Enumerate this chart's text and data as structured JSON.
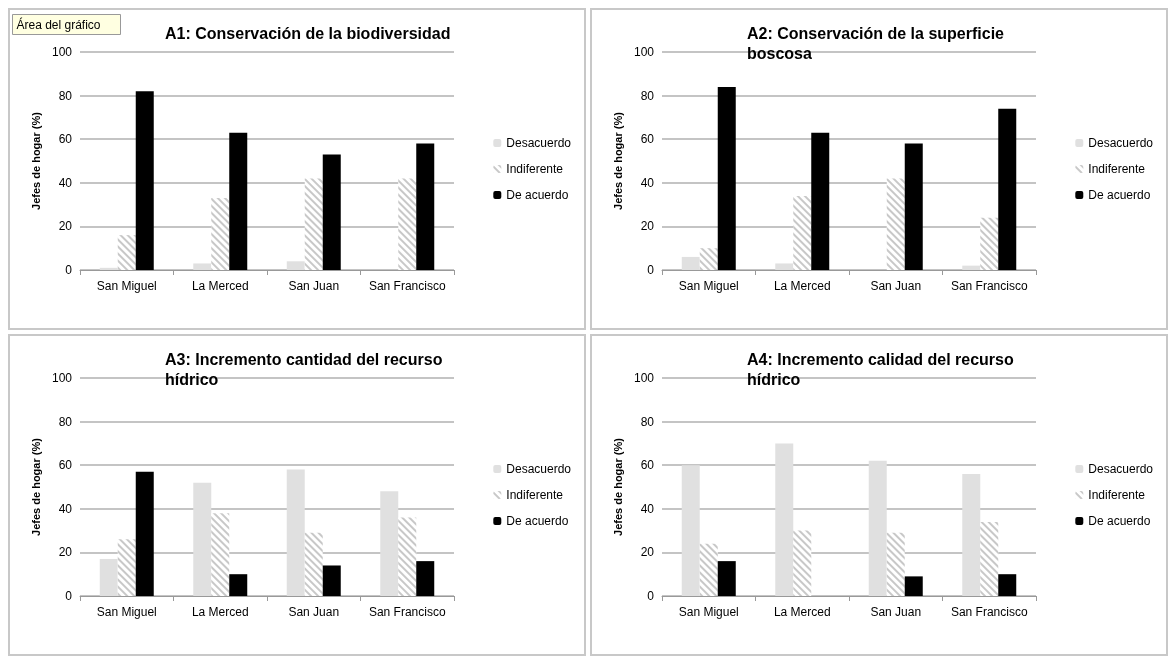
{
  "chart_data": [
    {
      "type": "bar",
      "title": "A1: Conservación de la biodiversidad",
      "ylabel": "Jefes de hogar (%)",
      "categories": [
        "San Miguel",
        "La Merced",
        "San Juan",
        "San Francisco"
      ],
      "ylim": [
        0,
        100
      ],
      "yticks": [
        0,
        20,
        40,
        60,
        80,
        100
      ],
      "grid": "y",
      "legend": "right",
      "annotations": [
        "Área del gráfico"
      ],
      "series": [
        {
          "name": "Desacuerdo",
          "color": "#e0e0e0",
          "values": [
            1,
            3,
            4,
            0
          ]
        },
        {
          "name": "Indiferente",
          "color": "#c8c8c8",
          "values": [
            16,
            33,
            42,
            42
          ]
        },
        {
          "name": "De acuerdo",
          "color": "#000000",
          "values": [
            82,
            63,
            53,
            58
          ]
        }
      ]
    },
    {
      "type": "bar",
      "title": "A2: Conservación de la superficie boscosa",
      "ylabel": "Jefes de hogar (%)",
      "categories": [
        "San Miguel",
        "La Merced",
        "San Juan",
        "San Francisco"
      ],
      "ylim": [
        0,
        100
      ],
      "yticks": [
        0,
        20,
        40,
        60,
        80,
        100
      ],
      "grid": "y",
      "legend": "right",
      "series": [
        {
          "name": "Desacuerdo",
          "color": "#e0e0e0",
          "values": [
            6,
            3,
            0,
            2
          ]
        },
        {
          "name": "Indiferente",
          "color": "#c8c8c8",
          "values": [
            10,
            34,
            42,
            24
          ]
        },
        {
          "name": "De acuerdo",
          "color": "#000000",
          "values": [
            84,
            63,
            58,
            74
          ]
        }
      ]
    },
    {
      "type": "bar",
      "title": "A3: Incremento cantidad del recurso hídrico",
      "ylabel": "Jefes de hogar (%)",
      "categories": [
        "San Miguel",
        "La Merced",
        "San Juan",
        "San Francisco"
      ],
      "ylim": [
        0,
        100
      ],
      "yticks": [
        0,
        20,
        40,
        60,
        80,
        100
      ],
      "grid": "y",
      "legend": "right",
      "series": [
        {
          "name": "Desacuerdo",
          "color": "#e0e0e0",
          "values": [
            17,
            52,
            58,
            48
          ]
        },
        {
          "name": "Indiferente",
          "color": "#c8c8c8",
          "values": [
            26,
            38,
            29,
            36
          ]
        },
        {
          "name": "De acuerdo",
          "color": "#000000",
          "values": [
            57,
            10,
            14,
            16
          ]
        }
      ]
    },
    {
      "type": "bar",
      "title": "A4: Incremento calidad del recurso hídrico",
      "ylabel": "Jefes de hogar (%)",
      "categories": [
        "San Miguel",
        "La Merced",
        "San Juan",
        "San Francisco"
      ],
      "ylim": [
        0,
        100
      ],
      "yticks": [
        0,
        20,
        40,
        60,
        80,
        100
      ],
      "grid": "y",
      "legend": "right",
      "series": [
        {
          "name": "Desacuerdo",
          "color": "#e0e0e0",
          "values": [
            60,
            70,
            62,
            56
          ]
        },
        {
          "name": "Indiferente",
          "color": "#c8c8c8",
          "values": [
            24,
            30,
            29,
            34
          ]
        },
        {
          "name": "De acuerdo",
          "color": "#000000",
          "values": [
            16,
            0,
            9,
            10
          ]
        }
      ]
    }
  ]
}
